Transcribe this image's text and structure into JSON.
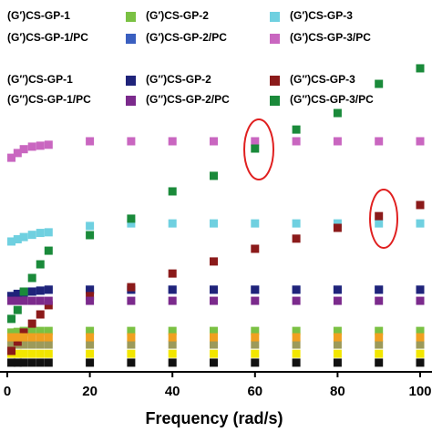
{
  "chart_data": {
    "type": "scatter",
    "x_label": "Frequency (rad/s)",
    "x": [
      1,
      2.5,
      4,
      6,
      8,
      10,
      20,
      30,
      40,
      50,
      60,
      70,
      80,
      90,
      100
    ],
    "xlim": [
      0,
      100
    ],
    "xticks": [
      0,
      20,
      40,
      60,
      80,
      100
    ],
    "ylim": [
      0,
      100
    ],
    "series": [
      {
        "name": "(G′)CS-GP-1",
        "color": "#111111",
        "values": [
          2.9,
          2.9,
          2.9,
          2.9,
          2.9,
          2.9,
          2.9,
          2.9,
          2.9,
          2.9,
          2.9,
          2.9,
          2.9,
          2.9,
          2.9
        ]
      },
      {
        "name": "(G′)CS-GP-2",
        "color": "#7ac143",
        "values": [
          12.4,
          12.6,
          12.9,
          12.9,
          12.9,
          12.9,
          12.9,
          12.9,
          12.9,
          12.9,
          12.9,
          12.9,
          12.9,
          12.9,
          12.9
        ]
      },
      {
        "name": "(G′)CS-GP-3",
        "color": "#6fd0e0",
        "values": [
          41.1,
          41.8,
          42.5,
          43.2,
          43.8,
          44.0,
          46.0,
          46.8,
          46.8,
          46.8,
          46.8,
          46.8,
          46.8,
          46.8,
          46.8
        ]
      },
      {
        "name": "(G′)CS-GP-1/PC",
        "color": "#9c9a5a",
        "values": [
          8.6,
          8.6,
          8.6,
          8.6,
          8.6,
          8.6,
          8.6,
          8.6,
          8.6,
          8.6,
          8.6,
          8.6,
          8.6,
          8.6,
          8.6
        ]
      },
      {
        "name": "(G′)CS-GP-2/PC",
        "color": "#3a5fc0",
        "values": [
          23.9,
          24.5,
          25.0,
          25.3,
          25.6,
          25.9,
          25.9,
          25.9,
          25.9,
          25.9,
          25.9,
          25.9,
          25.9,
          25.9,
          25.9
        ]
      },
      {
        "name": "(G′)CS-GP-3/PC",
        "color": "#c966c0",
        "values": [
          67.5,
          69.0,
          70.2,
          71.0,
          71.3,
          71.6,
          72.7,
          72.7,
          72.7,
          72.7,
          72.7,
          72.7,
          72.7,
          72.7,
          72.7
        ]
      },
      {
        "name": "(G′′)CS-GP-1",
        "color": "#f2e600",
        "values": [
          5.7,
          5.7,
          5.7,
          5.7,
          5.7,
          5.7,
          5.7,
          5.7,
          5.7,
          5.7,
          5.7,
          5.7,
          5.7,
          5.7,
          5.7
        ]
      },
      {
        "name": "(G′′)CS-GP-2",
        "color": "#1f237a",
        "values": [
          23.9,
          24.6,
          25.0,
          25.3,
          25.6,
          25.9,
          25.9,
          25.9,
          25.9,
          25.9,
          25.9,
          25.9,
          25.9,
          25.9,
          25.9
        ]
      },
      {
        "name": "(G′′)CS-GP-3",
        "color": "#8b1a1a",
        "values": [
          6.6,
          9.5,
          12.4,
          15.2,
          18.1,
          21.0,
          23.9,
          26.7,
          31.0,
          34.8,
          38.8,
          42.0,
          45.4,
          49.1,
          52.6
        ]
      },
      {
        "name": "(G′′)CS-GP-1/PC",
        "color": "#f0a020",
        "values": [
          10.9,
          10.9,
          10.9,
          10.9,
          10.9,
          10.9,
          10.9,
          10.9,
          10.9,
          10.9,
          10.9,
          10.9,
          10.9,
          10.9,
          10.9
        ]
      },
      {
        "name": "(G′′)CS-GP-2/PC",
        "color": "#7b2a8c",
        "values": [
          22.4,
          22.4,
          22.4,
          22.4,
          22.4,
          22.4,
          22.4,
          22.4,
          22.4,
          22.4,
          22.4,
          22.4,
          22.4,
          22.4,
          22.4
        ]
      },
      {
        "name": "(G′′)CS-GP-3/PC",
        "color": "#1a8a3a",
        "values": [
          16.7,
          19.5,
          25.3,
          29.6,
          33.9,
          38.2,
          43.1,
          48.3,
          56.9,
          61.8,
          70.4,
          76.4,
          81.6,
          90.8,
          95.7
        ]
      }
    ]
  }
}
